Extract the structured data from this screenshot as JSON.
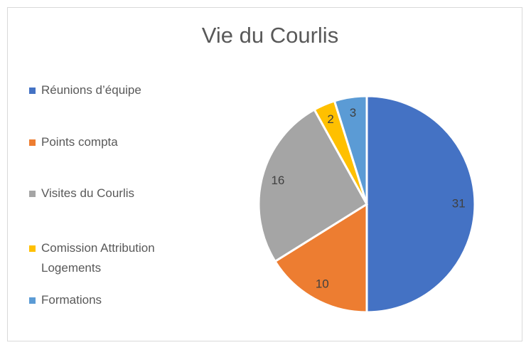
{
  "chart_data": {
    "type": "pie",
    "title": "Vie du Courlis",
    "categories": [
      "Réunions d’équipe",
      "Points compta",
      "Visites du Courlis",
      "Comission Attribution Logements",
      "Formations"
    ],
    "values": [
      31,
      10,
      16,
      2,
      3
    ],
    "colors": [
      "#4472c4",
      "#ed7d31",
      "#a5a5a5",
      "#ffc000",
      "#5b9bd5"
    ],
    "legend": "left"
  }
}
